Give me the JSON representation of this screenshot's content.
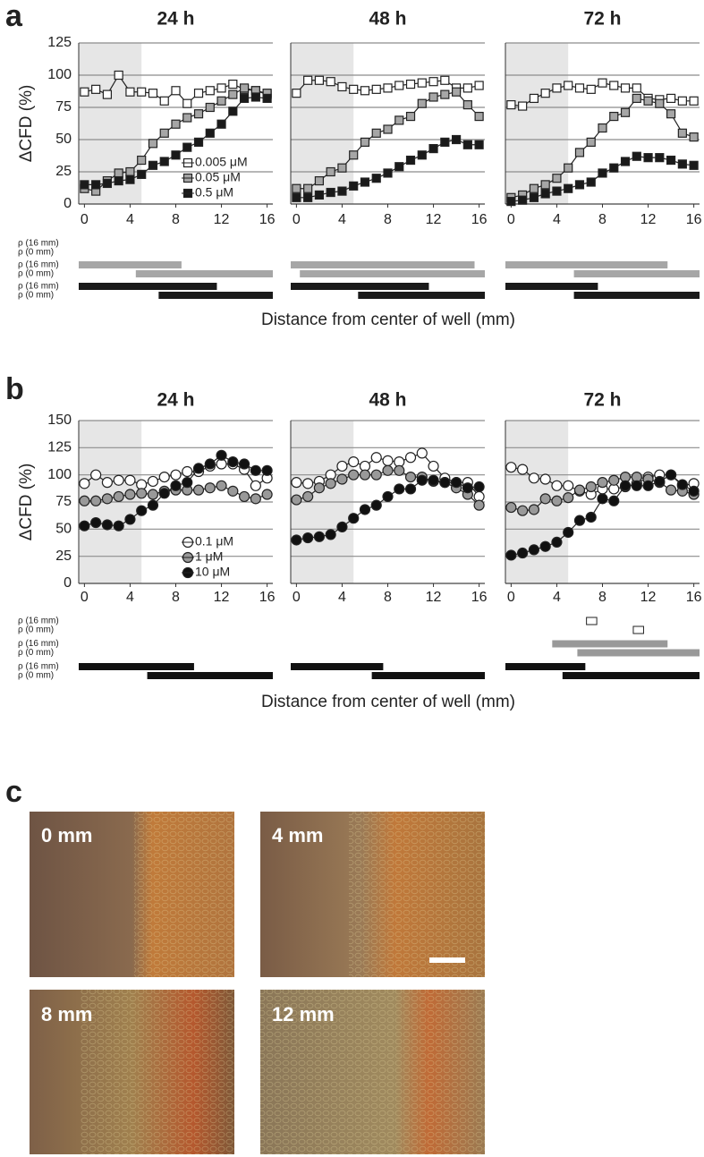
{
  "panel_labels": [
    "a",
    "b",
    "c"
  ],
  "rows": [
    {
      "ylabel": "ΔCFD (%)",
      "xlabel": "Distance from center of well (mm)",
      "rho_labels": [
        "ρ (16 mm)",
        "ρ (0 mm)"
      ],
      "ylim": [
        0,
        125
      ],
      "yticks": [
        0,
        25,
        50,
        75,
        100,
        125
      ]
    },
    {
      "ylabel": "ΔCFD (%)",
      "xlabel": "Distance from center of well (mm)",
      "rho_labels": [
        "ρ (16 mm)",
        "ρ (0 mm)"
      ],
      "ylim": [
        0,
        150
      ],
      "yticks": [
        0,
        25,
        50,
        75,
        100,
        125,
        150
      ]
    }
  ],
  "chart_data": [
    {
      "type": "line",
      "title": "24 h",
      "marker": "square",
      "legend": "lower right",
      "x": [
        0,
        1,
        2,
        3,
        4,
        5,
        6,
        7,
        8,
        9,
        10,
        11,
        12,
        13,
        14,
        15,
        16
      ],
      "xlim": [
        -0.5,
        16.5
      ],
      "xticks": [
        0,
        4,
        8,
        12,
        16
      ],
      "shaded_xrange": [
        -0.5,
        5
      ],
      "series": [
        {
          "name": "0.005 μM",
          "color": "#ffffff",
          "values": [
            87,
            89,
            85,
            100,
            87,
            87,
            86,
            80,
            88,
            78,
            86,
            88,
            90,
            93,
            89,
            88,
            85
          ],
          "significance": null
        },
        {
          "name": "0.05 μM",
          "color": "#a6a6a6",
          "values": [
            12,
            10,
            18,
            24,
            25,
            34,
            47,
            55,
            62,
            67,
            70,
            75,
            80,
            85,
            90,
            88,
            86
          ],
          "significance": {
            "rho_16mm": [
              -0.5,
              8.5
            ],
            "rho_0mm": [
              4.5,
              16.5
            ]
          }
        },
        {
          "name": "0.5 μM",
          "color": "#1a1a1a",
          "values": [
            15,
            15,
            16,
            18,
            19,
            23,
            30,
            33,
            38,
            44,
            48,
            55,
            62,
            72,
            82,
            83,
            82
          ],
          "significance": {
            "rho_16mm": [
              -0.5,
              11.6
            ],
            "rho_0mm": [
              6.5,
              16.5
            ]
          }
        }
      ]
    },
    {
      "type": "line",
      "title": "48 h",
      "marker": "square",
      "x": [
        0,
        1,
        2,
        3,
        4,
        5,
        6,
        7,
        8,
        9,
        10,
        11,
        12,
        13,
        14,
        15,
        16
      ],
      "xlim": [
        -0.5,
        16.5
      ],
      "xticks": [
        0,
        4,
        8,
        12,
        16
      ],
      "shaded_xrange": [
        -0.5,
        5
      ],
      "series": [
        {
          "color": "#ffffff",
          "values": [
            86,
            96,
            96,
            95,
            91,
            89,
            88,
            89,
            90,
            92,
            93,
            94,
            95,
            96,
            90,
            90,
            92
          ],
          "significance": null
        },
        {
          "color": "#a6a6a6",
          "values": [
            12,
            12,
            18,
            25,
            28,
            38,
            48,
            55,
            58,
            65,
            68,
            78,
            83,
            85,
            87,
            77,
            68
          ],
          "significance": {
            "rho_16mm": [
              -0.5,
              15.6
            ],
            "rho_0mm": [
              0.3,
              16.5
            ]
          }
        },
        {
          "color": "#1a1a1a",
          "values": [
            5,
            5,
            7,
            9,
            10,
            14,
            17,
            20,
            24,
            29,
            34,
            38,
            43,
            48,
            50,
            46,
            46
          ],
          "significance": {
            "rho_16mm": [
              -0.5,
              11.6
            ],
            "rho_0mm": [
              5.4,
              16.5
            ]
          }
        }
      ]
    },
    {
      "type": "line",
      "title": "72 h",
      "marker": "square",
      "x": [
        0,
        1,
        2,
        3,
        4,
        5,
        6,
        7,
        8,
        9,
        10,
        11,
        12,
        13,
        14,
        15,
        16
      ],
      "xlim": [
        -0.5,
        16.5
      ],
      "xticks": [
        0,
        4,
        8,
        12,
        16
      ],
      "shaded_xrange": [
        -0.5,
        5
      ],
      "series": [
        {
          "color": "#ffffff",
          "values": [
            77,
            76,
            82,
            86,
            90,
            92,
            90,
            89,
            94,
            92,
            90,
            90,
            82,
            81,
            82,
            80,
            80
          ],
          "significance": null
        },
        {
          "color": "#a6a6a6",
          "values": [
            5,
            7,
            12,
            15,
            20,
            28,
            40,
            48,
            59,
            68,
            71,
            82,
            80,
            78,
            70,
            55,
            52
          ],
          "significance": {
            "rho_16mm": [
              -0.5,
              13.7
            ],
            "rho_0mm": [
              5.5,
              16.5
            ]
          }
        },
        {
          "color": "#1a1a1a",
          "values": [
            2,
            3,
            5,
            8,
            10,
            12,
            15,
            17,
            24,
            28,
            33,
            37,
            36,
            36,
            34,
            31,
            30
          ],
          "significance": {
            "rho_16mm": [
              -0.5,
              7.6
            ],
            "rho_0mm": [
              5.5,
              16.5
            ]
          }
        }
      ]
    },
    {
      "type": "line",
      "title": "24 h",
      "marker": "circle",
      "legend": "lower right",
      "x": [
        0,
        1,
        2,
        3,
        4,
        5,
        6,
        7,
        8,
        9,
        10,
        11,
        12,
        13,
        14,
        15,
        16
      ],
      "xlim": [
        -0.5,
        16.5
      ],
      "xticks": [
        0,
        4,
        8,
        12,
        16
      ],
      "shaded_xrange": [
        -0.5,
        5
      ],
      "series": [
        {
          "name": "0.1 μM",
          "color": "#ffffff",
          "values": [
            92,
            100,
            93,
            95,
            95,
            91,
            94,
            98,
            100,
            103,
            103,
            108,
            110,
            110,
            105,
            90,
            97
          ],
          "significance": null
        },
        {
          "name": "1 μM",
          "color": "#999999",
          "values": [
            76,
            76,
            78,
            80,
            82,
            83,
            82,
            85,
            86,
            86,
            86,
            88,
            90,
            85,
            80,
            78,
            82
          ],
          "significance": null
        },
        {
          "name": "10 μM",
          "color": "#111111",
          "values": [
            53,
            56,
            54,
            53,
            59,
            67,
            72,
            83,
            90,
            93,
            106,
            110,
            118,
            112,
            110,
            104,
            104
          ],
          "significance": {
            "rho_16mm": [
              -0.5,
              9.6
            ],
            "rho_0mm": [
              5.5,
              16.5
            ]
          }
        }
      ]
    },
    {
      "type": "line",
      "title": "48 h",
      "marker": "circle",
      "x": [
        0,
        1,
        2,
        3,
        4,
        5,
        6,
        7,
        8,
        9,
        10,
        11,
        12,
        13,
        14,
        15,
        16
      ],
      "xlim": [
        -0.5,
        16.5
      ],
      "xticks": [
        0,
        4,
        8,
        12,
        16
      ],
      "shaded_xrange": [
        -0.5,
        5
      ],
      "series": [
        {
          "color": "#ffffff",
          "values": [
            93,
            92,
            94,
            100,
            108,
            112,
            108,
            116,
            113,
            112,
            116,
            120,
            108,
            97,
            93,
            93,
            80
          ],
          "significance": null
        },
        {
          "color": "#999999",
          "values": [
            77,
            80,
            88,
            92,
            96,
            100,
            100,
            100,
            104,
            104,
            98,
            98,
            94,
            93,
            88,
            82,
            72
          ],
          "significance": null
        },
        {
          "color": "#111111",
          "values": [
            40,
            42,
            43,
            45,
            52,
            60,
            68,
            72,
            80,
            87,
            87,
            95,
            95,
            93,
            93,
            88,
            89
          ],
          "significance": {
            "rho_16mm": [
              -0.5,
              7.6
            ],
            "rho_0mm": [
              6.6,
              16.5
            ]
          }
        }
      ]
    },
    {
      "type": "line",
      "title": "72 h",
      "marker": "circle",
      "x": [
        0,
        1,
        2,
        3,
        4,
        5,
        6,
        7,
        8,
        9,
        10,
        11,
        12,
        13,
        14,
        15,
        16
      ],
      "xlim": [
        -0.5,
        16.5
      ],
      "xticks": [
        0,
        4,
        8,
        12,
        16
      ],
      "shaded_xrange": [
        -0.5,
        5
      ],
      "series": [
        {
          "color": "#ffffff",
          "values": [
            107,
            105,
            97,
            96,
            90,
            90,
            85,
            82,
            87,
            87,
            89,
            92,
            98,
            100,
            100,
            90,
            92
          ],
          "significance": {
            "rho_16mm": [
              6.6,
              7.5
            ],
            "rho_0mm": [
              10.7,
              11.6
            ]
          }
        },
        {
          "color": "#999999",
          "values": [
            70,
            67,
            68,
            78,
            76,
            79,
            86,
            89,
            93,
            95,
            98,
            98,
            96,
            93,
            86,
            85,
            82
          ],
          "significance": {
            "rho_16mm": [
              3.6,
              13.7
            ],
            "rho_0mm": [
              5.8,
              16.5
            ]
          }
        },
        {
          "color": "#111111",
          "values": [
            26,
            28,
            31,
            34,
            38,
            47,
            58,
            61,
            78,
            76,
            90,
            90,
            90,
            94,
            100,
            91,
            85
          ],
          "significance": {
            "rho_16mm": [
              -0.5,
              6.5
            ],
            "rho_0mm": [
              4.5,
              16.5
            ]
          }
        }
      ]
    }
  ],
  "micrographs": [
    {
      "label": "0 mm"
    },
    {
      "label": "4 mm"
    },
    {
      "label": "8 mm"
    },
    {
      "label": "12 mm"
    }
  ]
}
